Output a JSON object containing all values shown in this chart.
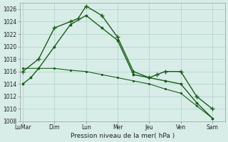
{
  "xlabel": "Pression niveau de la mer( hPa )",
  "background_color": "#d8ede8",
  "grid_color": "#b8d8d0",
  "line_color": "#1a5c1a",
  "x_tick_labels": [
    "LuMar",
    "Dim",
    "Lun",
    "Mer",
    "Jeu",
    "Ven",
    "Sam"
  ],
  "x_tick_positions": [
    0,
    2,
    4,
    6,
    8,
    10,
    12
  ],
  "xlim": [
    -0.2,
    12.8
  ],
  "ylim": [
    1008,
    1027
  ],
  "yticks": [
    1008,
    1010,
    1012,
    1014,
    1016,
    1018,
    1020,
    1022,
    1024,
    1026
  ],
  "series1": {
    "x": [
      0,
      1,
      2,
      3,
      3.5,
      4,
      5,
      6,
      7,
      8,
      8.5,
      9,
      10,
      11,
      12
    ],
    "y": [
      1016,
      1018,
      1023,
      1024,
      1024.5,
      1026.5,
      1025,
      1021.5,
      1016,
      1015,
      1015.5,
      1016,
      1016,
      1012,
      1010
    ]
  },
  "series2": {
    "x": [
      0,
      0.5,
      1,
      2,
      3,
      4,
      5,
      6,
      7,
      8,
      9,
      10,
      11,
      12
    ],
    "y": [
      1014,
      1015,
      1016.5,
      1020,
      1023.5,
      1025,
      1023,
      1021,
      1015.5,
      1015,
      1014.5,
      1014,
      1011,
      1008.5
    ]
  },
  "series3": {
    "x": [
      0,
      1,
      2,
      3,
      4,
      5,
      6,
      7,
      8,
      9,
      10,
      11,
      12
    ],
    "y": [
      1016.5,
      1016.5,
      1016.5,
      1016.2,
      1016.0,
      1015.5,
      1015.0,
      1014.5,
      1014.0,
      1013.2,
      1012.5,
      1010.5,
      1008.5
    ]
  }
}
